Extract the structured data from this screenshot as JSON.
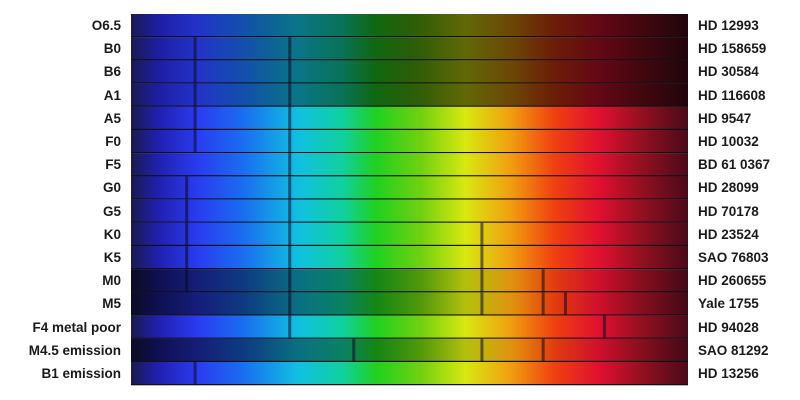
{
  "spectra": [
    {
      "class": "O6.5",
      "star": "HD 12993",
      "lines": [],
      "dark": false
    },
    {
      "class": "B0",
      "star": "HD 158659",
      "lines": [
        0.115,
        0.285
      ],
      "dark": false
    },
    {
      "class": "B6",
      "star": "HD 30584",
      "lines": [
        0.115,
        0.285
      ],
      "dark": false
    },
    {
      "class": "A1",
      "star": "HD 116608",
      "lines": [
        0.115,
        0.285
      ],
      "dark": false
    },
    {
      "class": "A5",
      "star": "HD 9547",
      "lines": [
        0.115,
        0.285
      ],
      "dark": false
    },
    {
      "class": "F0",
      "star": "HD 10032",
      "lines": [
        0.115,
        0.285
      ],
      "dark": false
    },
    {
      "class": "F5",
      "star": "BD 61 0367",
      "lines": [
        0.285
      ],
      "dark": false
    },
    {
      "class": "G0",
      "star": "HD 28099",
      "lines": [
        0.1,
        0.285
      ],
      "dark": false
    },
    {
      "class": "G5",
      "star": "HD 70178",
      "lines": [
        0.1,
        0.285
      ],
      "dark": false
    },
    {
      "class": "K0",
      "star": "HD 23524",
      "lines": [
        0.1,
        0.285,
        0.63
      ],
      "dark": false
    },
    {
      "class": "K5",
      "star": "SAO 76803",
      "lines": [
        0.1,
        0.285,
        0.63
      ],
      "dark": false
    },
    {
      "class": "M0",
      "star": "HD 260655",
      "lines": [
        0.1,
        0.285,
        0.63,
        0.74
      ],
      "dark": true
    },
    {
      "class": "M5",
      "star": "Yale 1755",
      "lines": [
        0.285,
        0.63,
        0.74,
        0.78
      ],
      "dark": true
    },
    {
      "class": "F4 metal poor",
      "star": "HD 94028",
      "lines": [
        0.285,
        0.85
      ],
      "dark": false
    },
    {
      "class": "M4.5 emission",
      "star": "SAO 81292",
      "lines": [
        0.4,
        0.63,
        0.74
      ],
      "dark": true
    },
    {
      "class": "B1 emission",
      "star": "HD 13256",
      "lines": [
        0.115
      ],
      "dark": false
    }
  ]
}
